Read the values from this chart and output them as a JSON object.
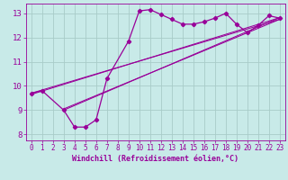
{
  "xlabel": "Windchill (Refroidissement éolien,°C)",
  "bg_color": "#c8eae8",
  "line_color": "#990099",
  "grid_color": "#a8ccc8",
  "xlim": [
    -0.5,
    23.5
  ],
  "ylim": [
    7.75,
    13.4
  ],
  "yticks": [
    8,
    9,
    10,
    11,
    12,
    13
  ],
  "xticks": [
    0,
    1,
    2,
    3,
    4,
    5,
    6,
    7,
    8,
    9,
    10,
    11,
    12,
    13,
    14,
    15,
    16,
    17,
    18,
    19,
    20,
    21,
    22,
    23
  ],
  "main_x": [
    0,
    1,
    3,
    4,
    5,
    6,
    7,
    9,
    10,
    11,
    12,
    13,
    14,
    15,
    16,
    17,
    18,
    19,
    20,
    21,
    22,
    23
  ],
  "main_y": [
    9.7,
    9.8,
    9.0,
    8.3,
    8.3,
    8.6,
    10.3,
    11.85,
    13.1,
    13.15,
    12.95,
    12.75,
    12.55,
    12.55,
    12.65,
    12.8,
    13.0,
    12.55,
    12.2,
    12.5,
    12.9,
    12.8
  ],
  "straight_lines": [
    {
      "x": [
        0,
        23
      ],
      "y": [
        9.65,
        12.82
      ]
    },
    {
      "x": [
        0,
        23
      ],
      "y": [
        9.7,
        12.75
      ]
    },
    {
      "x": [
        3,
        23
      ],
      "y": [
        9.0,
        12.82
      ]
    },
    {
      "x": [
        3,
        23
      ],
      "y": [
        9.05,
        12.75
      ]
    }
  ]
}
